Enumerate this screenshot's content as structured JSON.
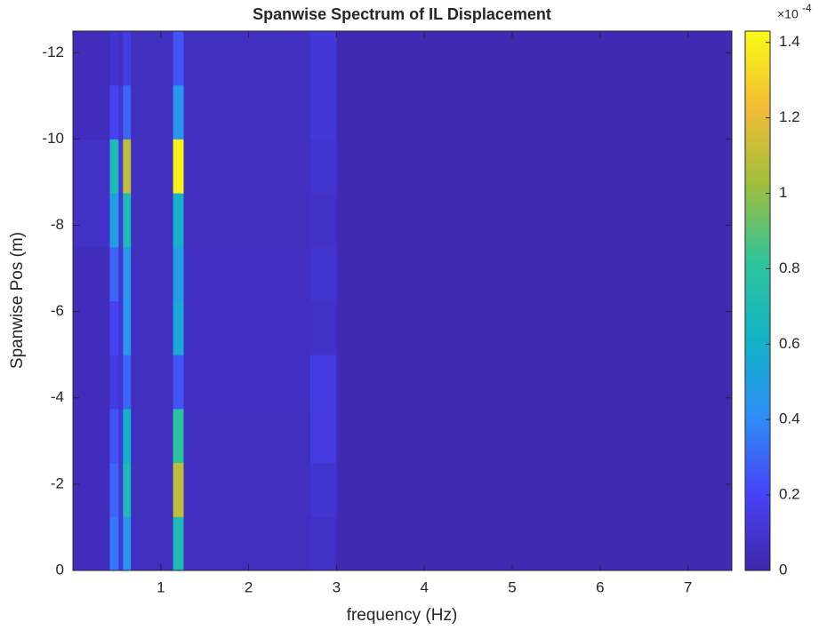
{
  "chart_data": {
    "type": "heatmap",
    "title": "Spanwise Spectrum of IL Displacement",
    "x_label": "frequency (Hz)",
    "y_label": "Spanwise Pos (m)",
    "xbins": [
      0,
      0.42,
      0.52,
      0.57,
      0.66,
      1.14,
      1.26,
      2.7,
      3.0,
      7.5
    ],
    "ybins": [
      0,
      -1.25,
      -2.5,
      -3.75,
      -5,
      -6.25,
      -7.5,
      -8.75,
      -10,
      -11.25,
      -12.5
    ],
    "z": [
      [
        0.05,
        0.35,
        0.12,
        0.45,
        0.06,
        0.7,
        0.06,
        0.08,
        0.03
      ],
      [
        0.05,
        0.3,
        0.12,
        0.7,
        0.06,
        1.1,
        0.06,
        0.1,
        0.03
      ],
      [
        0.05,
        0.25,
        0.12,
        0.6,
        0.06,
        0.8,
        0.06,
        0.14,
        0.03
      ],
      [
        0.05,
        0.15,
        0.1,
        0.3,
        0.06,
        0.25,
        0.07,
        0.15,
        0.03
      ],
      [
        0.05,
        0.2,
        0.1,
        0.45,
        0.06,
        0.55,
        0.07,
        0.08,
        0.03
      ],
      [
        0.05,
        0.3,
        0.1,
        0.45,
        0.06,
        0.5,
        0.07,
        0.1,
        0.03
      ],
      [
        0.08,
        0.5,
        0.12,
        0.7,
        0.06,
        0.6,
        0.06,
        0.08,
        0.03
      ],
      [
        0.08,
        0.7,
        0.12,
        1.1,
        0.06,
        1.4,
        0.06,
        0.1,
        0.03
      ],
      [
        0.05,
        0.2,
        0.1,
        0.3,
        0.06,
        0.45,
        0.06,
        0.12,
        0.03
      ],
      [
        0.05,
        0.1,
        0.08,
        0.15,
        0.06,
        0.25,
        0.06,
        0.12,
        0.03
      ]
    ],
    "xlim": [
      0,
      7.5
    ],
    "xticks": [
      1,
      2,
      3,
      4,
      5,
      6,
      7
    ],
    "ylim": [
      0,
      -12.5
    ],
    "yticks": [
      0,
      -2,
      -4,
      -6,
      -8,
      -10,
      -12
    ],
    "clim": [
      0,
      1.43
    ],
    "cticks": [
      0,
      0.2,
      0.4,
      0.6,
      0.8,
      1,
      1.2,
      1.4
    ],
    "colorbar_multiplier": {
      "base": "×10",
      "exponent": "-4"
    },
    "colormap": [
      "#3e26a8",
      "#4743f8",
      "#2d8ef7",
      "#12b3c6",
      "#2ec49b",
      "#9ebf3d",
      "#f3bc36",
      "#f9fb15"
    ]
  }
}
